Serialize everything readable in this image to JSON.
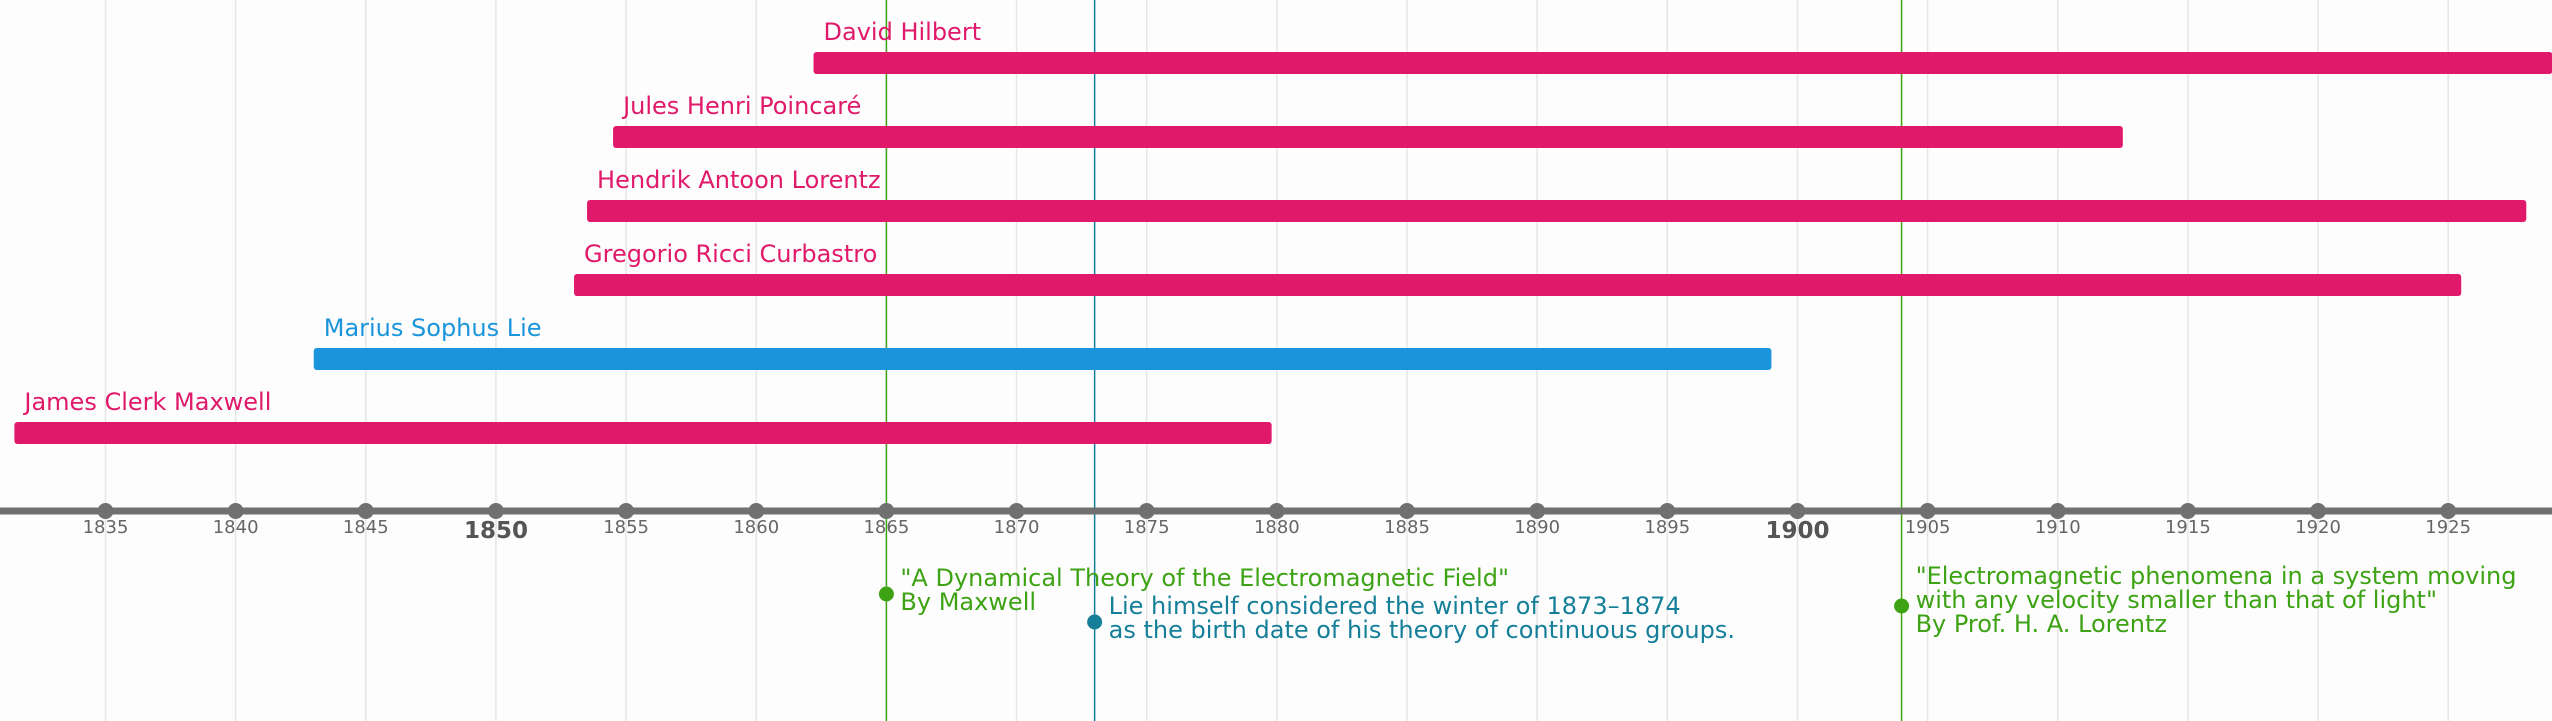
{
  "chart_data": {
    "type": "timeline",
    "x_range": [
      1831.5,
      1929
    ],
    "colors": {
      "pink": "#e0196b",
      "blue": "#1a95dc",
      "green": "#3da314",
      "teal": "#157f99",
      "axis": "#707070",
      "grid": "#e6e6e6"
    },
    "bars": [
      {
        "label": "David Hilbert",
        "start": 1862.2,
        "end": 1929.0,
        "color": "pink"
      },
      {
        "label": "Jules Henri Poincaré",
        "start": 1854.5,
        "end": 1912.5,
        "color": "pink"
      },
      {
        "label": "Hendrik Antoon Lorentz",
        "start": 1853.5,
        "end": 1928.0,
        "color": "pink"
      },
      {
        "label": "Gregorio Ricci Curbastro",
        "start": 1853.0,
        "end": 1925.5,
        "color": "pink"
      },
      {
        "label": "Marius Sophus Lie",
        "start": 1843.0,
        "end": 1899.0,
        "color": "blue"
      },
      {
        "label": "James Clerk Maxwell",
        "start": 1831.5,
        "end": 1879.8,
        "color": "pink"
      }
    ],
    "ticks": [
      {
        "year": 1835,
        "label": "1835",
        "major": false
      },
      {
        "year": 1840,
        "label": "1840",
        "major": false
      },
      {
        "year": 1845,
        "label": "1845",
        "major": false
      },
      {
        "year": 1850,
        "label": "1850",
        "major": true
      },
      {
        "year": 1855,
        "label": "1855",
        "major": false
      },
      {
        "year": 1860,
        "label": "1860",
        "major": false
      },
      {
        "year": 1865,
        "label": "1865",
        "major": false
      },
      {
        "year": 1870,
        "label": "1870",
        "major": false
      },
      {
        "year": 1875,
        "label": "1875",
        "major": false
      },
      {
        "year": 1880,
        "label": "1880",
        "major": false
      },
      {
        "year": 1885,
        "label": "1885",
        "major": false
      },
      {
        "year": 1890,
        "label": "1890",
        "major": false
      },
      {
        "year": 1895,
        "label": "1895",
        "major": false
      },
      {
        "year": 1900,
        "label": "1900",
        "major": true
      },
      {
        "year": 1905,
        "label": "1905",
        "major": false
      },
      {
        "year": 1910,
        "label": "1910",
        "major": false
      },
      {
        "year": 1915,
        "label": "1915",
        "major": false
      },
      {
        "year": 1920,
        "label": "1920",
        "major": false
      },
      {
        "year": 1925,
        "label": "1925",
        "major": false
      }
    ],
    "events": [
      {
        "year": 1865,
        "color": "green",
        "lines": [
          "\"A Dynamical Theory of the Electromagnetic Field\"",
          "By Maxwell"
        ]
      },
      {
        "year": 1873,
        "color": "teal",
        "lines": [
          "Lie himself considered the winter of 1873–1874",
          "as the birth date of his theory of continuous groups."
        ]
      },
      {
        "year": 1904,
        "color": "green",
        "lines": [
          "\"Electromagnetic phenomena in a system moving",
          "with any velocity smaller than that of light\"",
          "By Prof. H. A. Lorentz"
        ]
      }
    ]
  }
}
